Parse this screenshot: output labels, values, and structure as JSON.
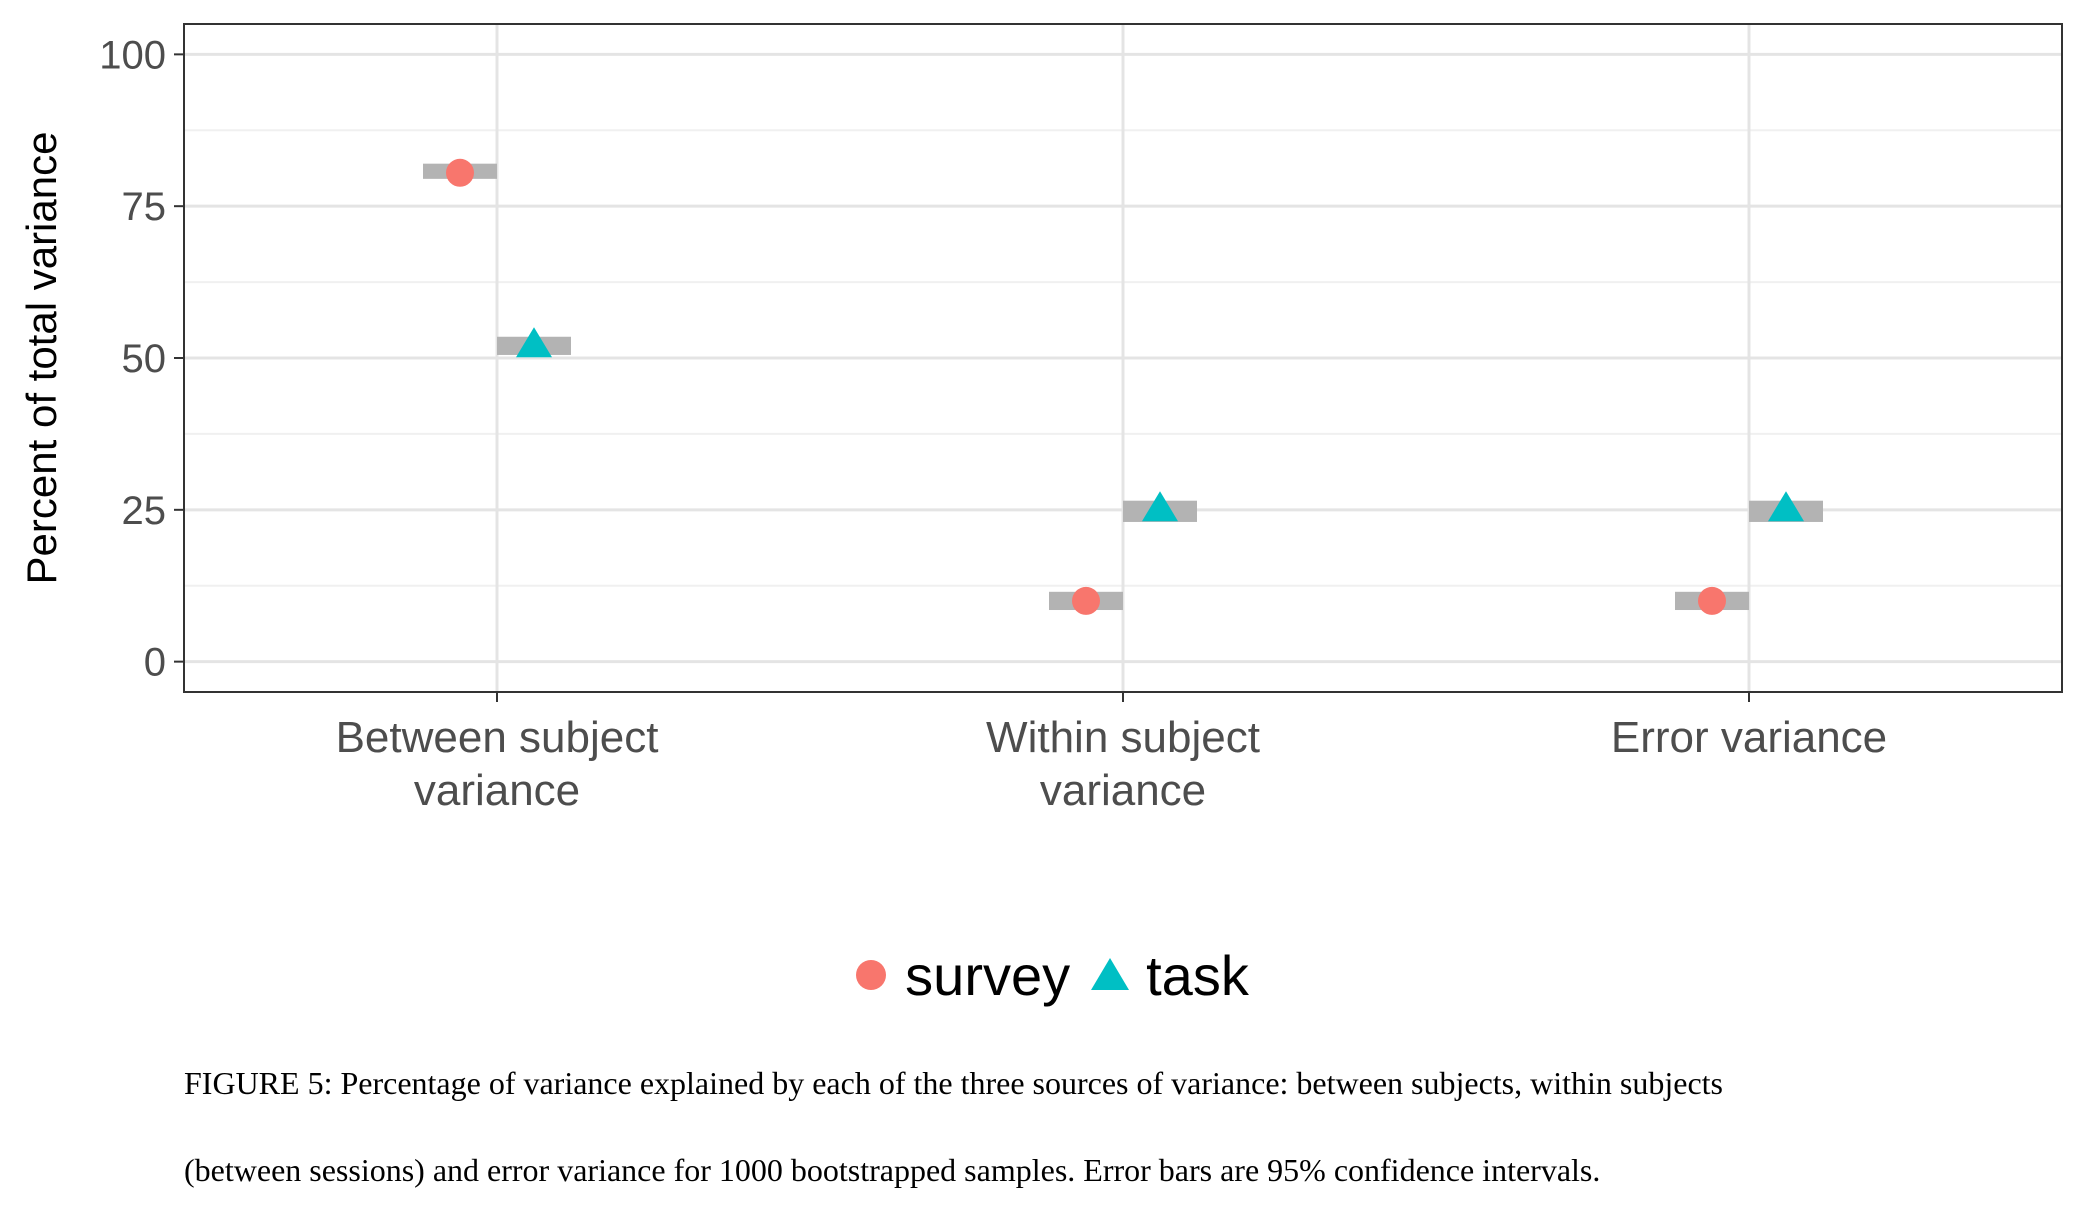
{
  "chart_data": {
    "type": "scatter",
    "ylabel": "Percent of total variance",
    "xlabel": "",
    "ylim": [
      -5,
      105
    ],
    "yticks": [
      0,
      25,
      50,
      75,
      100
    ],
    "categories": [
      [
        "Between subject",
        "variance"
      ],
      [
        "Within subject",
        "variance"
      ],
      [
        "Error variance"
      ]
    ],
    "grid": true,
    "legend_position": "bottom",
    "series": [
      {
        "name": "survey",
        "color": "#F8766D",
        "marker": "circle",
        "values": [
          80.5,
          10,
          10
        ],
        "ci_low": [
          79.5,
          8.5,
          8.5
        ],
        "ci_high": [
          82,
          11.5,
          11.5
        ]
      },
      {
        "name": "task",
        "color": "#00BFC4",
        "marker": "triangle",
        "values": [
          52,
          25,
          25
        ],
        "ci_low": [
          50.5,
          23,
          23
        ],
        "ci_high": [
          53.5,
          26.5,
          26.5
        ]
      }
    ]
  },
  "legend": {
    "items": [
      "survey",
      "task"
    ]
  },
  "caption": {
    "line1": "FIGURE 5: Percentage of variance explained by each of the three sources of variance: between subjects, within subjects",
    "line2": "(between sessions) and error variance for 1000 bootstrapped samples. Error bars are 95% confidence intervals."
  }
}
